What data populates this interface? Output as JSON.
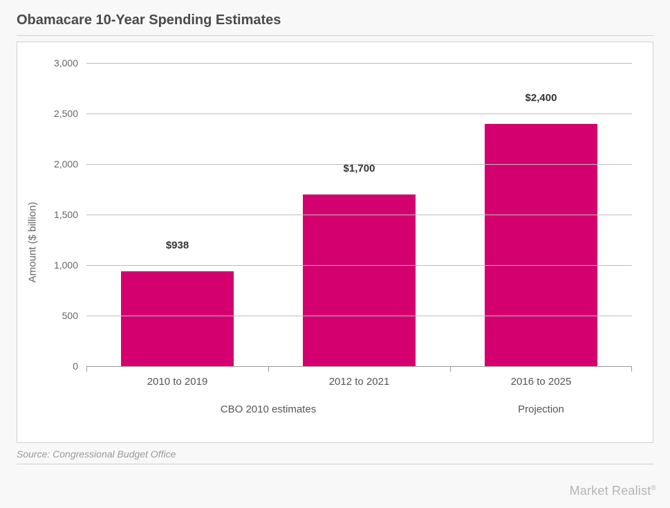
{
  "title": "Obamacare 10-Year Spending Estimates",
  "source": "Source: Congressional Budget Office",
  "watermark": "Market Realist",
  "chart": {
    "type": "bar",
    "ylabel": "Amount ($ billion)",
    "ymax": 3000,
    "ytick_step": 500,
    "yticks": [
      "0",
      "500",
      "1,000",
      "1,500",
      "2,000",
      "2,500",
      "3,000"
    ],
    "bar_color": "#d4006f",
    "background_color": "#ffffff",
    "grid_color": "#bdbdbd",
    "label_fontsize": 15,
    "title_fontsize": 20,
    "categories": [
      "2010 to 2019",
      "2012 to 2021",
      "2016 to 2025"
    ],
    "values": [
      938,
      1700,
      2400
    ],
    "value_labels": [
      "$938",
      "$1,700",
      "$2,400"
    ],
    "group_labels": [
      {
        "text": "CBO 2010 estimates",
        "span": 2
      },
      {
        "text": "Projection",
        "span": 1
      }
    ]
  }
}
